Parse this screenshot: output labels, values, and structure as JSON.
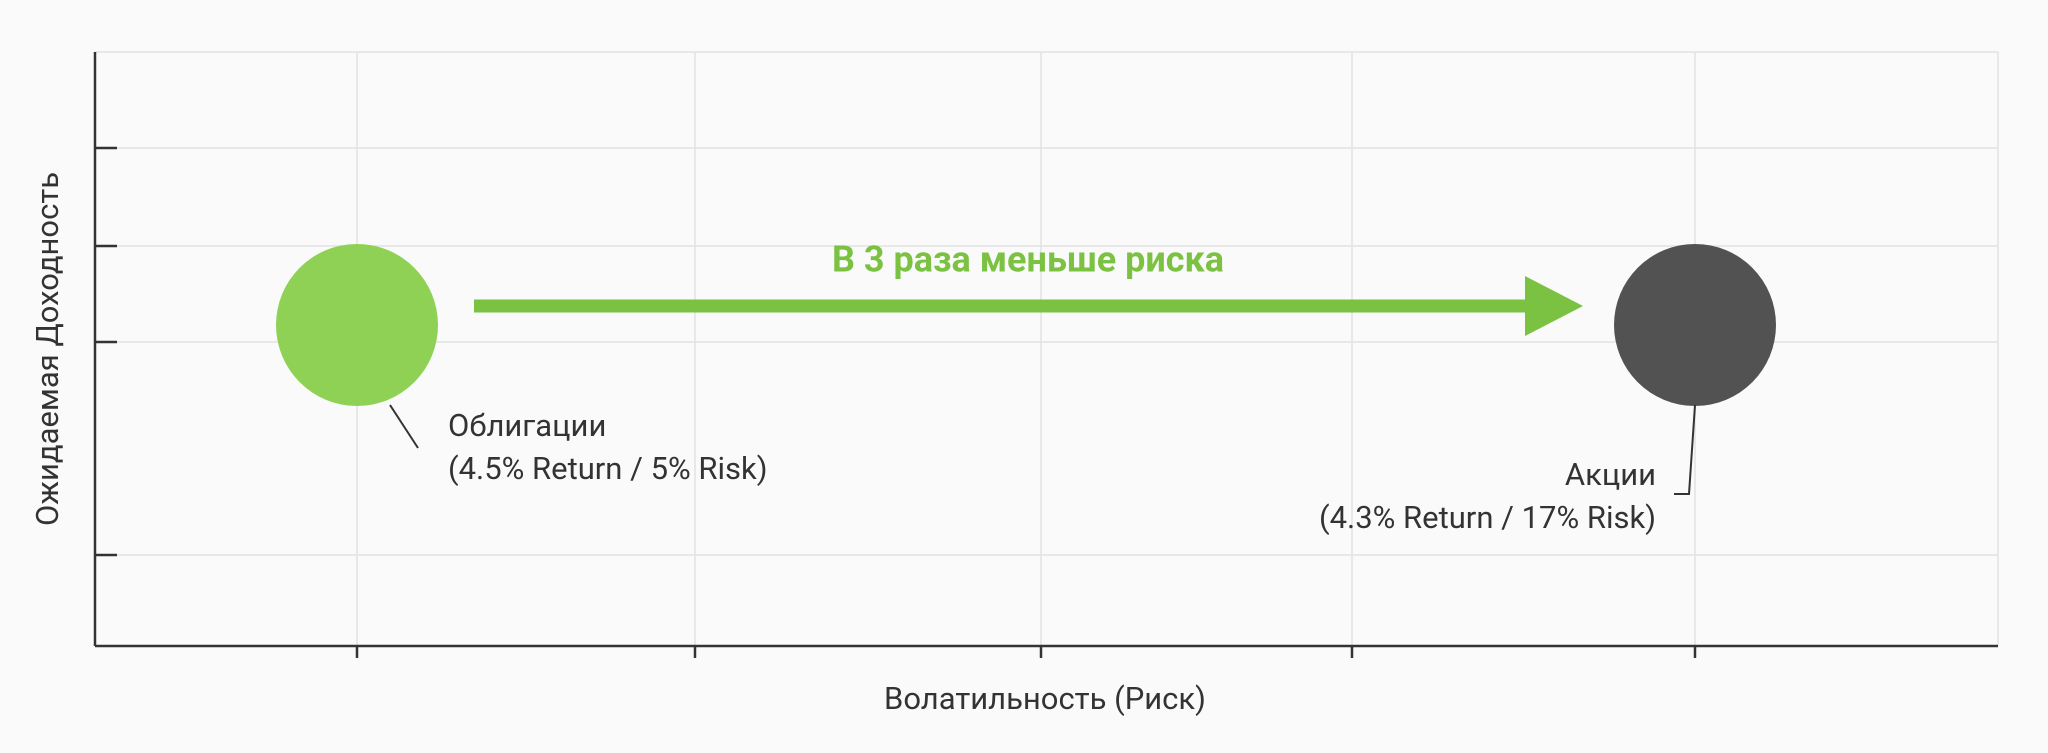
{
  "y_axis_label": "Ожидаемая Доходность",
  "x_axis_label": "Волатильность (Риск)",
  "arrow_label": "В 3 раза меньше риска",
  "points": [
    {
      "name": "Облигации",
      "detail": "(4.5% Return / 5% Risk)"
    },
    {
      "name": "Акции",
      "detail": "(4.3% Return / 17% Risk)"
    }
  ]
}
